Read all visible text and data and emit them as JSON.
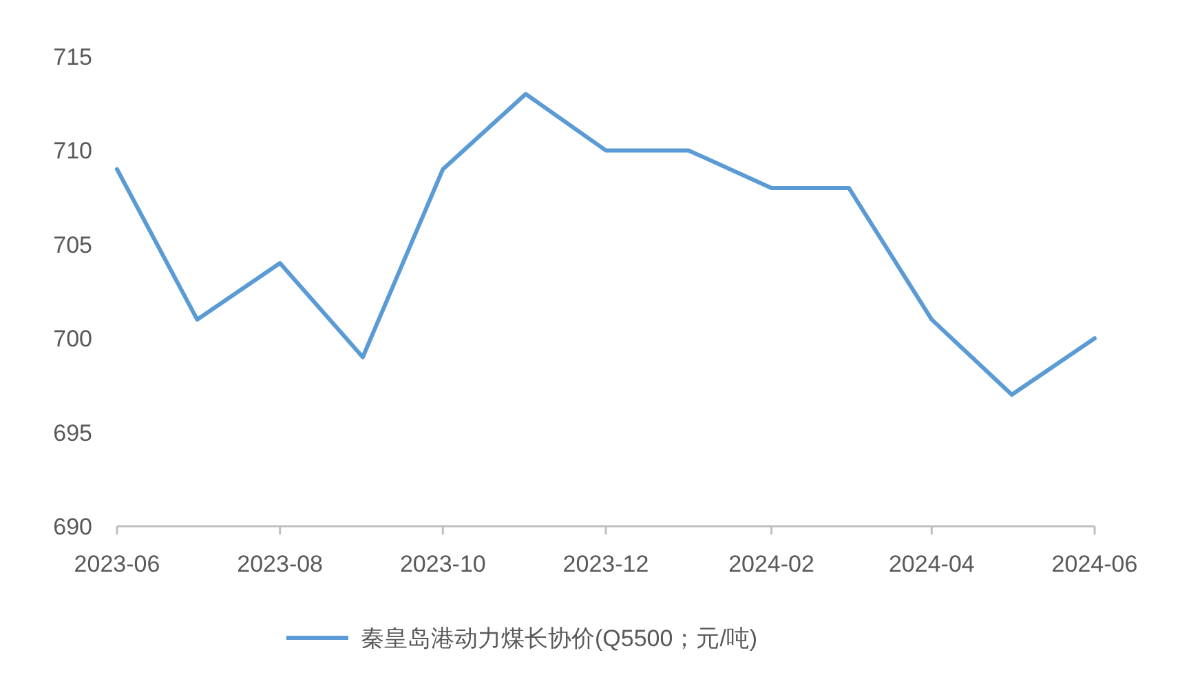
{
  "chart_data": {
    "type": "line",
    "x": [
      "2023-06",
      "2023-07",
      "2023-08",
      "2023-09",
      "2023-10",
      "2023-11",
      "2023-12",
      "2024-01",
      "2024-02",
      "2024-03",
      "2024-04",
      "2024-05",
      "2024-06"
    ],
    "series": [
      {
        "name": "秦皇岛港动力煤长协价(Q5500；元/吨)",
        "color": "#5b9bd5",
        "values": [
          709,
          701,
          704,
          699,
          709,
          713,
          710,
          710,
          708,
          708,
          701,
          697,
          700
        ]
      }
    ],
    "xlim": [
      "2023-06",
      "2024-06"
    ],
    "xticks": [
      "2023-06",
      "2023-08",
      "2023-10",
      "2023-12",
      "2024-02",
      "2024-04",
      "2024-06"
    ],
    "ylim": [
      690,
      715
    ],
    "yticks": [
      690,
      695,
      700,
      705,
      710,
      715
    ],
    "legend": "bottom"
  }
}
